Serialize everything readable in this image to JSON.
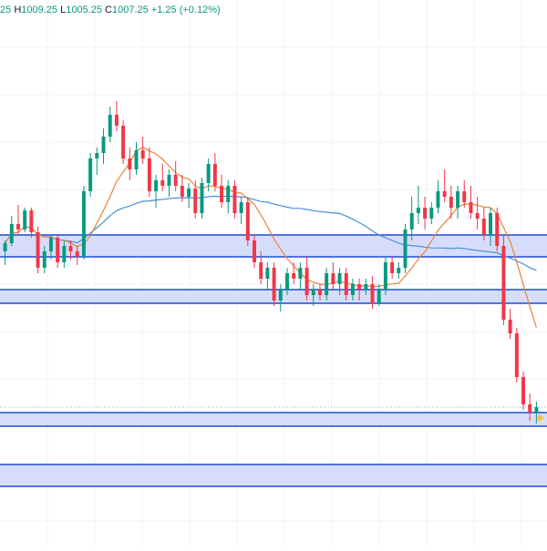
{
  "colors": {
    "up": "#089981",
    "down": "#f23645",
    "zone_fill": "#d6ddfb",
    "zone_border": "#1e4bd2",
    "ma_fast": "#e8843c",
    "ma_slow": "#4a90d9",
    "grid": "#f0f3fa",
    "last_price_line": "#9fb0a8",
    "last_marker": "#f5c242"
  },
  "legend": {
    "open_partial": "25",
    "high_label": "H",
    "high_value": "1009.25",
    "low_label": "L",
    "low_value": "1005.25",
    "close_label": "C",
    "close_value": "1007.25",
    "change": "+1.25 (+0.12%)"
  },
  "chart_data": {
    "type": "candlestick",
    "grid": true,
    "price_range": [
      920,
      1120
    ],
    "zones": [
      {
        "top": 1034,
        "bottom": 1026
      },
      {
        "top": 1014,
        "bottom": 1009
      },
      {
        "top": 969,
        "bottom": 964
      },
      {
        "top": 950,
        "bottom": 942
      }
    ],
    "candles": [
      [
        1028,
        1032,
        1023,
        1031
      ],
      [
        1031,
        1041,
        1030,
        1038
      ],
      [
        1038,
        1045,
        1034,
        1036
      ],
      [
        1036,
        1044,
        1035,
        1043
      ],
      [
        1043,
        1044,
        1033,
        1035
      ],
      [
        1035,
        1037,
        1020,
        1022
      ],
      [
        1022,
        1030,
        1020,
        1028
      ],
      [
        1028,
        1034,
        1025,
        1033
      ],
      [
        1033,
        1034,
        1022,
        1024
      ],
      [
        1024,
        1032,
        1022,
        1030
      ],
      [
        1030,
        1032,
        1025,
        1028
      ],
      [
        1028,
        1030,
        1023,
        1026
      ],
      [
        1026,
        1052,
        1025,
        1050
      ],
      [
        1050,
        1064,
        1048,
        1062
      ],
      [
        1062,
        1066,
        1056,
        1064
      ],
      [
        1064,
        1073,
        1060,
        1070
      ],
      [
        1070,
        1081,
        1068,
        1078
      ],
      [
        1078,
        1083,
        1072,
        1074
      ],
      [
        1074,
        1076,
        1060,
        1062
      ],
      [
        1062,
        1066,
        1054,
        1058
      ],
      [
        1058,
        1068,
        1056,
        1065
      ],
      [
        1065,
        1070,
        1060,
        1062
      ],
      [
        1062,
        1066,
        1048,
        1050
      ],
      [
        1050,
        1056,
        1044,
        1054
      ],
      [
        1054,
        1060,
        1050,
        1052
      ],
      [
        1052,
        1058,
        1048,
        1056
      ],
      [
        1056,
        1061,
        1050,
        1052
      ],
      [
        1052,
        1056,
        1046,
        1048
      ],
      [
        1048,
        1053,
        1044,
        1051
      ],
      [
        1051,
        1054,
        1040,
        1042
      ],
      [
        1042,
        1055,
        1040,
        1053
      ],
      [
        1053,
        1062,
        1050,
        1060
      ],
      [
        1060,
        1064,
        1050,
        1052
      ],
      [
        1052,
        1056,
        1044,
        1046
      ],
      [
        1046,
        1054,
        1042,
        1052
      ],
      [
        1052,
        1054,
        1040,
        1042
      ],
      [
        1042,
        1048,
        1038,
        1046
      ],
      [
        1046,
        1048,
        1030,
        1032
      ],
      [
        1032,
        1034,
        1022,
        1024
      ],
      [
        1024,
        1028,
        1016,
        1018
      ],
      [
        1018,
        1024,
        1014,
        1022
      ],
      [
        1022,
        1024,
        1008,
        1010
      ],
      [
        1010,
        1016,
        1006,
        1014
      ],
      [
        1014,
        1022,
        1012,
        1020
      ],
      [
        1020,
        1024,
        1016,
        1018
      ],
      [
        1018,
        1024,
        1014,
        1022
      ],
      [
        1022,
        1026,
        1010,
        1012
      ],
      [
        1012,
        1016,
        1008,
        1014
      ],
      [
        1014,
        1016,
        1010,
        1012
      ],
      [
        1012,
        1022,
        1010,
        1020
      ],
      [
        1020,
        1024,
        1014,
        1016
      ],
      [
        1016,
        1022,
        1012,
        1020
      ],
      [
        1020,
        1022,
        1010,
        1012
      ],
      [
        1012,
        1018,
        1010,
        1016
      ],
      [
        1016,
        1018,
        1010,
        1014
      ],
      [
        1014,
        1018,
        1012,
        1016
      ],
      [
        1016,
        1019,
        1007,
        1009
      ],
      [
        1009,
        1016,
        1008,
        1014
      ],
      [
        1014,
        1026,
        1012,
        1024
      ],
      [
        1024,
        1026,
        1018,
        1020
      ],
      [
        1020,
        1024,
        1018,
        1022
      ],
      [
        1022,
        1038,
        1020,
        1036
      ],
      [
        1036,
        1048,
        1032,
        1042
      ],
      [
        1042,
        1052,
        1038,
        1044
      ],
      [
        1044,
        1048,
        1036,
        1040
      ],
      [
        1040,
        1046,
        1038,
        1044
      ],
      [
        1044,
        1054,
        1042,
        1050
      ],
      [
        1050,
        1058,
        1046,
        1048
      ],
      [
        1048,
        1052,
        1040,
        1044
      ],
      [
        1044,
        1052,
        1040,
        1050
      ],
      [
        1050,
        1054,
        1044,
        1046
      ],
      [
        1046,
        1052,
        1040,
        1042
      ],
      [
        1042,
        1048,
        1036,
        1040
      ],
      [
        1040,
        1044,
        1032,
        1034
      ],
      [
        1034,
        1044,
        1030,
        1042
      ],
      [
        1042,
        1044,
        1028,
        1030
      ],
      [
        1030,
        1034,
        1001,
        1003
      ],
      [
        1003,
        1007,
        996,
        998
      ],
      [
        998,
        1000,
        980,
        982
      ],
      [
        982,
        984,
        970,
        972
      ],
      [
        972,
        976,
        966,
        969
      ],
      [
        969,
        973,
        965,
        971
      ]
    ]
  }
}
